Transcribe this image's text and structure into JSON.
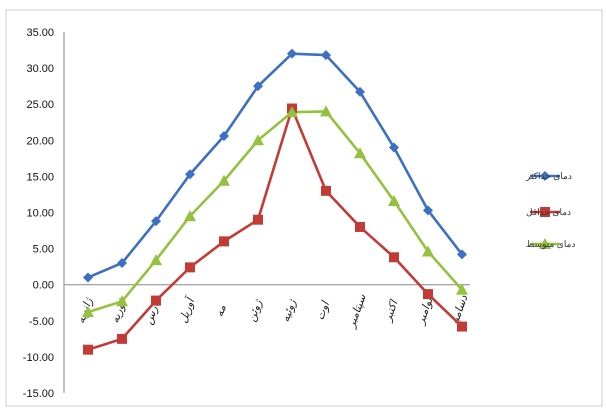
{
  "chart_data": {
    "type": "line",
    "categories": [
      "ژانویه",
      "فوریه",
      "مارس",
      "آوریل",
      "مه",
      "ژوئن",
      "ژوئیه",
      "اوت",
      "سپتامبر",
      "اکتبر",
      "نوامبر",
      "دسامبر"
    ],
    "series": [
      {
        "name": "دمای حداکثر",
        "color": "#3d6fc4",
        "marker": "diamond",
        "values": [
          1.0,
          3.0,
          8.8,
          15.3,
          20.6,
          27.5,
          32.0,
          31.8,
          26.7,
          19.0,
          10.3,
          4.2
        ]
      },
      {
        "name": "دمای حداقل",
        "color": "#c23b36",
        "marker": "square",
        "values": [
          -9.0,
          -7.5,
          -2.2,
          2.4,
          6.0,
          9.0,
          24.4,
          13.0,
          8.0,
          3.8,
          -1.3,
          -5.8
        ]
      },
      {
        "name": "دمای متوسط",
        "color": "#94c13e",
        "marker": "triangle",
        "values": [
          -3.8,
          -2.3,
          3.4,
          9.5,
          14.4,
          20.0,
          23.9,
          24.0,
          18.2,
          11.6,
          4.6,
          -0.7
        ]
      }
    ],
    "ylim": [
      -15,
      35
    ],
    "yticks": [
      "35.00",
      "30.00",
      "25.00",
      "20.00",
      "15.00",
      "10.00",
      "5.00",
      "0.00",
      "-5.00",
      "-10.00",
      "-15.00"
    ],
    "grid": false,
    "legend_position": "right"
  }
}
